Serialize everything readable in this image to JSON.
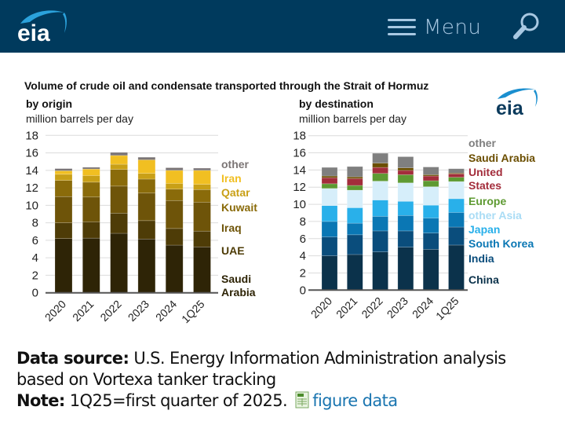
{
  "header": {
    "logo_text": "eia",
    "menu_label": "Menu",
    "menu_icon": "hamburger-icon",
    "search_icon": "search-icon"
  },
  "figure": {
    "title": "Volume of crude oil and condensate transported through the Strait of Hormuz",
    "logo_text": "eia"
  },
  "chart_data": [
    {
      "type": "bar",
      "stacked": true,
      "title": "by origin",
      "ylabel": "million barrels per day",
      "xlabel": "",
      "ylim": [
        0,
        18
      ],
      "yticks": [
        0,
        2,
        4,
        6,
        8,
        10,
        12,
        14,
        16,
        18
      ],
      "grid": true,
      "legend_position": "right",
      "categories": [
        "2020",
        "2021",
        "2022",
        "2023",
        "2024",
        "1Q25"
      ],
      "series": [
        {
          "name": "Saudi Arabia",
          "legend_label": "Saudi\nArabia",
          "color": "#2e2406",
          "values": [
            6.2,
            6.25,
            6.8,
            6.15,
            5.45,
            5.25
          ]
        },
        {
          "name": "UAE",
          "legend_label": "UAE",
          "color": "#4e3c07",
          "values": [
            1.8,
            1.85,
            2.3,
            2.1,
            1.9,
            1.8
          ]
        },
        {
          "name": "Iraq",
          "legend_label": "Iraq",
          "color": "#6e5409",
          "values": [
            3.0,
            2.85,
            3.1,
            3.15,
            3.2,
            3.3
          ]
        },
        {
          "name": "Kuwait",
          "legend_label": "Kuwait",
          "color": "#8a6b0a",
          "values": [
            1.85,
            1.7,
            1.9,
            1.6,
            1.3,
            1.45
          ]
        },
        {
          "name": "Qatar",
          "legend_label": "Qatar",
          "color": "#c9a017",
          "values": [
            0.7,
            0.75,
            0.6,
            0.65,
            0.65,
            0.6
          ]
        },
        {
          "name": "Iran",
          "legend_label": "Iran",
          "color": "#f1bf22",
          "values": [
            0.4,
            0.75,
            1.0,
            1.55,
            1.5,
            1.6
          ]
        },
        {
          "name": "other",
          "legend_label": "other",
          "color": "#7b7575",
          "values": [
            0.25,
            0.2,
            0.35,
            0.3,
            0.3,
            0.25
          ]
        }
      ]
    },
    {
      "type": "bar",
      "stacked": true,
      "title": "by destination",
      "ylabel": "million barrels per day",
      "xlabel": "",
      "ylim": [
        0,
        18
      ],
      "yticks": [
        0,
        2,
        4,
        6,
        8,
        10,
        12,
        14,
        16,
        18
      ],
      "grid": true,
      "legend_position": "right",
      "categories": [
        "2020",
        "2021",
        "2022",
        "2023",
        "2024",
        "1Q25"
      ],
      "series": [
        {
          "name": "China",
          "legend_label": "China",
          "color": "#0b324b",
          "values": [
            4.0,
            4.15,
            4.45,
            5.0,
            4.75,
            5.25
          ]
        },
        {
          "name": "India",
          "legend_label": "India",
          "color": "#0a4d7c",
          "values": [
            2.2,
            2.3,
            2.45,
            1.9,
            1.9,
            2.1
          ]
        },
        {
          "name": "South Korea",
          "legend_label": "South Korea",
          "color": "#0a77b4",
          "values": [
            1.8,
            1.35,
            1.7,
            1.8,
            1.75,
            1.7
          ]
        },
        {
          "name": "Japan",
          "legend_label": "Japan",
          "color": "#29b0ea",
          "values": [
            1.85,
            1.8,
            1.9,
            1.65,
            1.5,
            1.6
          ]
        },
        {
          "name": "other Asia",
          "legend_label": "other Asia",
          "color": "#d6eefa",
          "values": [
            2.0,
            2.05,
            2.2,
            2.15,
            2.15,
            2.0
          ]
        },
        {
          "name": "Europe",
          "legend_label": "Europe",
          "color": "#5e9a32",
          "values": [
            0.55,
            0.55,
            0.9,
            0.95,
            0.7,
            0.5
          ]
        },
        {
          "name": "United States",
          "legend_label": "United\nStates",
          "color": "#a32d3b",
          "values": [
            0.7,
            0.8,
            0.7,
            0.5,
            0.55,
            0.4
          ]
        },
        {
          "name": "Saudi Arabia",
          "legend_label": "Saudi Arabia",
          "color": "#6b4e00",
          "values": [
            0.2,
            0.2,
            0.5,
            0.3,
            0.15,
            0.1
          ]
        },
        {
          "name": "other",
          "legend_label": "other",
          "color": "#7f7f7f",
          "values": [
            1.0,
            1.2,
            1.15,
            1.3,
            0.9,
            0.5
          ]
        }
      ]
    }
  ],
  "legend_text_colors": {
    "origin": {
      "other": "#7b7575",
      "Iran": "#f1bf22",
      "Qatar": "#c9a017",
      "Kuwait": "#8a6b0a",
      "Iraq": "#6e5409",
      "UAE": "#4e3c07",
      "Saudi Arabia": "#2e2406"
    },
    "destination": {
      "other": "#7f7f7f",
      "Saudi Arabia": "#6b4e00",
      "United States": "#a32d3b",
      "Europe": "#5e9a32",
      "other Asia": "#a9dcf5",
      "Japan": "#29b0ea",
      "South Korea": "#0a77b4",
      "India": "#0a4d7c",
      "China": "#0b324b"
    }
  },
  "footer": {
    "source_label": "Data source:",
    "source_text": " U.S. Energy Information Administration analysis based on Vortexa tanker tracking",
    "note_label": "Note:",
    "note_text": " 1Q25=first quarter of 2025.",
    "figure_data_icon": "spreadsheet-icon",
    "figure_data_link": "figure data"
  }
}
